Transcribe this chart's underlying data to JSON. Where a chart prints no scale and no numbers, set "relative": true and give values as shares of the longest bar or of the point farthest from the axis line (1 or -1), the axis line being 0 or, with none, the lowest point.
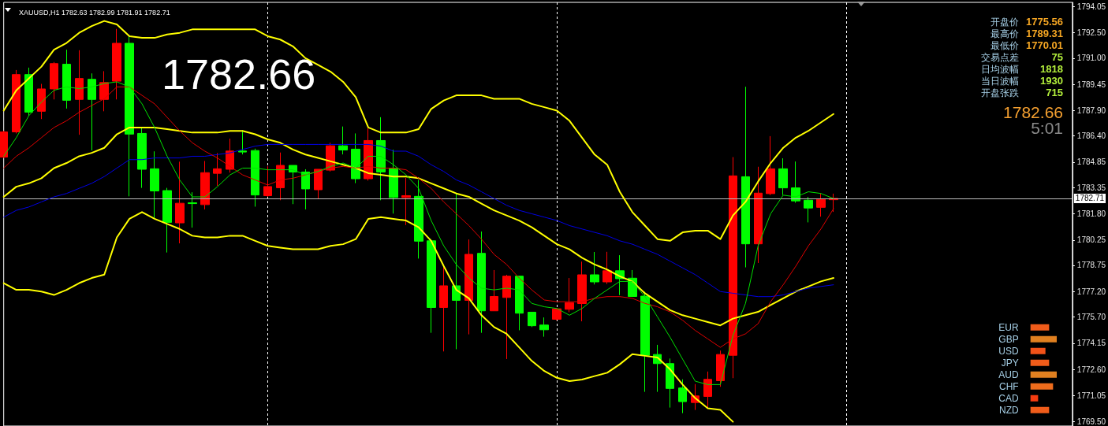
{
  "chart_data": [
    {
      "type": "candlestick",
      "title": "XAUUSD,H1 1782.63 1782.99 1781.91 1782.71",
      "categories": [
        null,
        null,
        null,
        null,
        null,
        null,
        null,
        null,
        null,
        null,
        null,
        null,
        null,
        null,
        null,
        null,
        null,
        null,
        null,
        null,
        null,
        null,
        null,
        null,
        null,
        null,
        null,
        null,
        null,
        null,
        null,
        null,
        null,
        null,
        null,
        null,
        null,
        null,
        null,
        null,
        null,
        null,
        null,
        null,
        null,
        null,
        null,
        null,
        null,
        null,
        null,
        null,
        null,
        null,
        null,
        null,
        null,
        null,
        null,
        null,
        null,
        null,
        null,
        null,
        null,
        null,
        null,
        null,
        null,
        null,
        null,
        null,
        null,
        null,
        null,
        null,
        null,
        null,
        null,
        null,
        null,
        null,
        null,
        null,
        null,
        null
      ],
      "ohlc": [
        [
          1785.15,
          1786.7,
          1785.1,
          1786.64
        ],
        [
          1786.64,
          1790.3,
          1786.55,
          1790.03
        ],
        [
          1790.03,
          1790.44,
          1787.6,
          1787.81
        ],
        [
          1787.86,
          1789.48,
          1787.4,
          1789.18
        ],
        [
          1789.18,
          1790.77,
          1788.56,
          1790.68
        ],
        [
          1790.64,
          1791.5,
          1788.02,
          1788.51
        ],
        [
          1788.56,
          1791.47,
          1786.47,
          1789.8
        ],
        [
          1789.75,
          1790.1,
          1785.54,
          1788.56
        ],
        [
          1788.56,
          1790.23,
          1787.86,
          1789.56
        ],
        [
          1789.64,
          1792.73,
          1788.56,
          1791.88
        ],
        [
          1791.88,
          1792.35,
          1782.83,
          1786.51
        ],
        [
          1786.55,
          1786.86,
          1783.33,
          1784.43
        ],
        [
          1784.46,
          1785.49,
          1781.53,
          1783.15
        ],
        [
          1783.17,
          1783.33,
          1779.51,
          1781.29
        ],
        [
          1781.26,
          1784.88,
          1780.05,
          1782.42
        ],
        [
          1782.45,
          1783.07,
          1780.98,
          1782.4
        ],
        [
          1782.34,
          1784.92,
          1782.06,
          1784.23
        ],
        [
          1784.19,
          1785.39,
          1783.45,
          1784.46
        ],
        [
          1784.43,
          1786.24,
          1784.23,
          1785.51
        ],
        [
          1785.51,
          1786.75,
          1785.31,
          1785.45
        ],
        [
          1785.54,
          1785.65,
          1782.22,
          1782.91
        ],
        [
          1782.87,
          1784.61,
          1782.8,
          1783.41
        ],
        [
          1783.34,
          1785.42,
          1782.6,
          1784.66
        ],
        [
          1784.66,
          1784.66,
          1782.37,
          1784.27
        ],
        [
          1784.27,
          1784.43,
          1782.06,
          1783.27
        ],
        [
          1783.22,
          1784.43,
          1782.68,
          1784.43
        ],
        [
          1784.38,
          1786.0,
          1784.3,
          1785.82
        ],
        [
          1785.82,
          1786.96,
          1785.31,
          1785.57
        ],
        [
          1785.62,
          1786.55,
          1783.61,
          1783.87
        ],
        [
          1783.87,
          1786.86,
          1783.76,
          1786.13
        ],
        [
          1786.13,
          1787.51,
          1782.6,
          1784.27
        ],
        [
          1784.49,
          1785.59,
          1781.81,
          1782.76
        ],
        [
          1782.76,
          1783.92,
          1781.13,
          1782.87
        ],
        [
          1782.83,
          1783.8,
          1779.15,
          1780.18
        ],
        [
          1780.2,
          1780.3,
          1774.76,
          1776.26
        ],
        [
          1776.26,
          1778.74,
          1773.66,
          1777.54
        ],
        [
          1777.54,
          1782.99,
          1773.79,
          1776.68
        ],
        [
          1776.68,
          1780.28,
          1774.67,
          1779.4
        ],
        [
          1779.46,
          1780.75,
          1774.76,
          1776.06
        ],
        [
          1776.06,
          1778.47,
          1776.06,
          1776.91
        ],
        [
          1776.85,
          1778.19,
          1773.21,
          1778.11
        ],
        [
          1778.11,
          1778.11,
          1774.91,
          1775.92
        ],
        [
          1775.98,
          1775.98,
          1775.1,
          1775.18
        ],
        [
          1775.22,
          1775.67,
          1774.53,
          1774.94
        ],
        [
          1775.56,
          1776.2,
          1775.5,
          1776.18
        ],
        [
          1776.15,
          1778.0,
          1775.98,
          1776.54
        ],
        [
          1776.49,
          1778.97,
          1775.44,
          1778.19
        ],
        [
          1778.19,
          1779.54,
          1777.62,
          1777.77
        ],
        [
          1777.77,
          1779.55,
          1777.65,
          1778.43
        ],
        [
          1778.43,
          1779.35,
          1776.99,
          1777.96
        ],
        [
          1777.99,
          1778.47,
          1776.91,
          1776.91
        ],
        [
          1776.93,
          1777.19,
          1771.27,
          1773.43
        ],
        [
          1773.48,
          1774.05,
          1771.27,
          1772.94
        ],
        [
          1772.94,
          1773.24,
          1770.34,
          1771.47
        ],
        [
          1771.5,
          1772.01,
          1770.01,
          1770.69
        ],
        [
          1770.64,
          1771.73,
          1770.2,
          1771.03
        ],
        [
          1771.0,
          1772.47,
          1770.31,
          1772.01
        ],
        [
          1771.93,
          1773.71,
          1771.57,
          1773.48
        ],
        [
          1773.43,
          1785.15,
          1772.08,
          1784.04
        ],
        [
          1783.99,
          1789.31,
          1778.63,
          1780.02
        ],
        [
          1780.02,
          1784.58,
          1778.89,
          1783.02
        ],
        [
          1782.99,
          1786.39,
          1782.9,
          1784.46
        ],
        [
          1784.46,
          1785.08,
          1782.91,
          1783.33
        ],
        [
          1783.33,
          1784.89,
          1782.45,
          1782.56
        ],
        [
          1782.6,
          1782.8,
          1781.29,
          1782.14
        ],
        [
          1782.18,
          1782.99,
          1781.63,
          1782.65
        ],
        [
          1782.63,
          1782.99,
          1781.91,
          1782.71
        ],
        null,
        null,
        null,
        null,
        null,
        null,
        null,
        null,
        null,
        null,
        null,
        null,
        null,
        null,
        null,
        null,
        null,
        null,
        null
      ],
      "colors": [
        "#ff0000",
        "#ff0000",
        "#00ff00",
        "#ff0000",
        "#ff0000",
        "#00ff00",
        "#ff0000",
        "#00ff00",
        "#ff0000",
        "#ff0000",
        "#00ff00",
        "#00ff00",
        "#00ff00",
        "#00ff00",
        "#ff0000",
        "#00ff00",
        "#ff0000",
        "#ff0000",
        "#ff0000",
        "#00ff00",
        "#00ff00",
        "#ff0000",
        "#ff0000",
        "#00ff00",
        "#00ff00",
        "#ff0000",
        "#ff0000",
        "#00ff00",
        "#00ff00",
        "#ff0000",
        "#00ff00",
        "#00ff00",
        "#ff0000",
        "#00ff00",
        "#00ff00",
        "#ff0000",
        "#00ff00",
        "#ff0000",
        "#00ff00",
        "#ff0000",
        "#ff0000",
        "#00ff00",
        "#00ff00",
        "#00ff00",
        "#ff0000",
        "#ff0000",
        "#ff0000",
        "#00ff00",
        "#ff0000",
        "#00ff00",
        "#00ff00",
        "#00ff00",
        "#00ff00",
        "#00ff00",
        "#00ff00",
        "#ff0000",
        "#ff0000",
        "#ff0000",
        "#ff0000",
        "#00ff00",
        "#ff0000",
        "#ff0000",
        "#00ff00",
        "#00ff00",
        "#00ff00",
        "#ff0000",
        "#ff0000",
        null,
        null,
        null,
        null,
        null,
        null,
        null,
        null,
        null,
        null,
        null,
        null,
        null,
        null,
        null,
        null,
        null,
        null,
        null
      ],
      "series": [
        {
          "type": "line",
          "color": "#ffff00",
          "values": [
            1787.9,
            1789.1,
            1789.8,
            1790.5,
            1791.5,
            1791.9,
            1792.5,
            1792.9,
            1793.2,
            1793.0,
            1792.3,
            1792.2,
            1792.2,
            1792.4,
            1792.5,
            1792.7,
            1792.7,
            1792.7,
            1792.7,
            1792.7,
            1792.7,
            1792.3,
            1792.1,
            1791.7,
            1791.0,
            1790.6,
            1790.2,
            1789.6,
            1788.7,
            1786.9,
            1786.6,
            1786.6,
            1786.6,
            1786.8,
            1788.0,
            1788.5,
            1788.8,
            1788.8,
            1788.8,
            1788.6,
            1788.6,
            1788.6,
            1788.3,
            1788.1,
            1787.9,
            1787.3,
            1786.3,
            1785.3,
            1784.7,
            1783.1,
            1781.9,
            1781.1,
            1780.3,
            1780.2,
            1780.7,
            1780.8,
            1780.8,
            1780.3,
            1781.7,
            1782.5,
            1783.7,
            1784.8,
            1785.7,
            1786.3,
            1786.7,
            1787.2,
            1787.7,
            null,
            null,
            null,
            null,
            null,
            null,
            null,
            null,
            null,
            null,
            null,
            null,
            null,
            null,
            null,
            null,
            null,
            null,
            null
          ]
        },
        {
          "type": "line",
          "color": "#ffff00",
          "values": [
            1782.8,
            1783.4,
            1783.6,
            1783.9,
            1784.5,
            1784.8,
            1785.2,
            1785.4,
            1785.7,
            1786.5,
            1786.9,
            1786.9,
            1786.9,
            1786.8,
            1786.7,
            1786.6,
            1786.6,
            1786.6,
            1786.7,
            1786.7,
            1786.5,
            1786.2,
            1786.0,
            1785.6,
            1785.3,
            1785.1,
            1784.9,
            1784.7,
            1784.5,
            1784.2,
            1784.1,
            1784.0,
            1784.0,
            1783.9,
            1783.6,
            1783.3,
            1783.0,
            1782.8,
            1782.4,
            1782.0,
            1781.7,
            1781.4,
            1781.0,
            1780.5,
            1780.0,
            1779.7,
            1779.2,
            1778.8,
            1778.5,
            1778.1,
            1777.8,
            1777.1,
            1776.6,
            1776.1,
            1775.8,
            1775.6,
            1775.4,
            1775.2,
            1775.6,
            1775.8,
            1776.0,
            1776.4,
            1776.8,
            1777.2,
            1777.5,
            1777.8,
            1778.0,
            null,
            null,
            null,
            null,
            null,
            null,
            null,
            null,
            null,
            null,
            null,
            null,
            null,
            null,
            null,
            null,
            null,
            null,
            null
          ]
        },
        {
          "type": "line",
          "color": "#ffff00",
          "values": [
            1777.7,
            1777.3,
            1777.3,
            1777.2,
            1777.0,
            1777.3,
            1777.7,
            1778.0,
            1778.2,
            1780.4,
            1781.5,
            1781.9,
            1781.5,
            1781.2,
            1780.9,
            1780.5,
            1780.4,
            1780.4,
            1780.5,
            1780.5,
            1780.2,
            1779.9,
            1779.8,
            1779.7,
            1779.7,
            1779.7,
            1779.9,
            1780.0,
            1780.3,
            1781.5,
            1781.6,
            1781.5,
            1781.4,
            1781.0,
            1780.2,
            1778.7,
            1777.3,
            1776.8,
            1775.8,
            1775.1,
            1774.7,
            1773.9,
            1773.1,
            1772.5,
            1772.1,
            1771.9,
            1772.0,
            1772.2,
            1772.4,
            1772.9,
            1773.5,
            1773.4,
            1773.3,
            1772.6,
            1771.7,
            1770.9,
            1770.3,
            1770.2,
            1769.5,
            null,
            null,
            null,
            null,
            null,
            null,
            null,
            null,
            null,
            null,
            null,
            null,
            null,
            null,
            null,
            null,
            null,
            null,
            null,
            null,
            null,
            null,
            null,
            null,
            null,
            null,
            null
          ]
        },
        {
          "type": "line",
          "color": "#0000e6",
          "values": [
            1781.6,
            1782.0,
            1782.2,
            1782.5,
            1782.8,
            1783.0,
            1783.3,
            1783.6,
            1784.0,
            1784.5,
            1785.0,
            1785.0,
            1785.1,
            1785.1,
            1785.1,
            1785.2,
            1785.2,
            1785.3,
            1785.4,
            1785.6,
            1785.8,
            1785.9,
            1785.9,
            1785.9,
            1785.9,
            1785.9,
            1785.9,
            1785.9,
            1785.9,
            1785.9,
            1785.8,
            1785.5,
            1785.5,
            1785.2,
            1784.7,
            1784.3,
            1783.8,
            1783.5,
            1783.1,
            1782.7,
            1782.3,
            1782.0,
            1781.8,
            1781.6,
            1781.4,
            1781.1,
            1780.9,
            1780.7,
            1780.5,
            1780.2,
            1780.0,
            1779.7,
            1779.4,
            1779.0,
            1778.6,
            1778.2,
            1777.7,
            1777.2,
            1777.1,
            1777.0,
            1776.9,
            1776.9,
            1777.0,
            1777.2,
            1777.4,
            1777.5,
            1777.6,
            null,
            null,
            null,
            null,
            null,
            null,
            null,
            null,
            null,
            null,
            null,
            null,
            null,
            null,
            null,
            null,
            null,
            null,
            null
          ]
        },
        {
          "type": "line",
          "color": "#e00000",
          "values": [
            1784.5,
            1785.2,
            1785.7,
            1786.3,
            1786.9,
            1787.3,
            1787.8,
            1788.2,
            1788.6,
            1789.3,
            1789.3,
            1788.8,
            1788.3,
            1787.5,
            1786.7,
            1786.0,
            1785.5,
            1785.1,
            1784.6,
            1784.1,
            1783.8,
            1783.5,
            1783.8,
            1783.9,
            1784.1,
            1784.3,
            1784.5,
            1784.6,
            1784.5,
            1784.6,
            1784.5,
            1784.5,
            1784.4,
            1783.9,
            1783.3,
            1782.5,
            1781.8,
            1781.1,
            1780.3,
            1779.4,
            1778.8,
            1778.0,
            1777.3,
            1776.7,
            1776.6,
            1776.6,
            1776.6,
            1776.8,
            1776.9,
            1776.9,
            1776.8,
            1776.5,
            1776.3,
            1776.0,
            1775.5,
            1774.9,
            1774.4,
            1773.9,
            1774.4,
            1774.7,
            1775.3,
            1776.6,
            1777.6,
            1778.7,
            1779.9,
            1780.9,
            1782.1,
            null,
            null,
            null,
            null,
            null,
            null,
            null,
            null,
            null,
            null,
            null,
            null,
            null,
            null,
            null,
            null,
            null,
            null,
            null
          ]
        },
        {
          "type": "line",
          "color": "#00e000",
          "values": [
            1785.2,
            1786.3,
            1787.6,
            1788.4,
            1789.1,
            1789.3,
            1789.2,
            1789.3,
            1789.5,
            1789.6,
            1789.3,
            1788.3,
            1786.9,
            1785.2,
            1783.8,
            1782.8,
            1782.8,
            1783.4,
            1784.1,
            1784.5,
            1784.5,
            1784.4,
            1784.4,
            1784.4,
            1784.1,
            1784.3,
            1784.6,
            1784.8,
            1784.5,
            1785.2,
            1785.2,
            1784.7,
            1784.1,
            1783.3,
            1781.4,
            1779.9,
            1778.8,
            1778.0,
            1777.4,
            1777.3,
            1777.4,
            1777.3,
            1776.5,
            1776.3,
            1776.2,
            1775.8,
            1776.2,
            1776.8,
            1777.3,
            1777.8,
            1777.8,
            1776.9,
            1775.7,
            1774.5,
            1773.2,
            1771.9,
            1771.7,
            1771.7,
            1774.6,
            1776.5,
            1779.9,
            1781.8,
            1782.9,
            1782.8,
            1783.1,
            1783.0,
            1782.7,
            null,
            null,
            null,
            null,
            null,
            null,
            null,
            null,
            null,
            null,
            null,
            null,
            null,
            null,
            null,
            null,
            null,
            null,
            null
          ]
        }
      ],
      "ylim": [
        1769.25,
        1794.3
      ],
      "yticks": [
        1794.05,
        {
          "value": 1792.5,
          "label": "1792.50"
        },
        {
          "value": 1791,
          "label": "1791.00"
        },
        1789.45,
        {
          "value": 1787.9,
          "label": "1787.90"
        },
        {
          "value": 1786.4,
          "label": "1786.40"
        },
        1784.85,
        1783.35,
        {
          "value": 1781.8,
          "label": "1781.80"
        },
        1780.25,
        1778.75,
        {
          "value": 1777.2,
          "label": "1777.20"
        },
        {
          "value": 1775.7,
          "label": "1775.70"
        },
        1774.15,
        {
          "value": 1772.6,
          "label": "1772.60"
        },
        1771.05,
        {
          "value": 1769.5,
          "label": "1769.50"
        }
      ],
      "ref_lines": [
        {
          "axis": "y",
          "value": 1782.71,
          "label": "1782.71",
          "color": "#c0c0c0"
        }
      ],
      "annotations": [
        "1782.66",
        "开盘价 1775.56",
        "最高价 1789.31",
        "最低价 1770.01",
        "交易点差 75",
        "日均波幅 1818",
        "当日波幅 1930",
        "开盘张跌 715",
        "1782.66",
        "5:01"
      ],
      "marker": "none",
      "tick_labels": "y",
      "grid": "x"
    },
    {
      "type": "bar",
      "orientation": "horizontal",
      "relative": true,
      "categories": [
        "EUR",
        "GBP",
        "USD",
        "JPY",
        "AUD",
        "CHF",
        "CAD",
        "NZD"
      ],
      "values": [
        0.71,
        1,
        0.57,
        0.71,
        1,
        0.86,
        0.29,
        0.71
      ],
      "colors": [
        "#f05c1a",
        "#e08020",
        "#f25218",
        "#f05c1a",
        "#e08020",
        "#ee6c1c",
        "#f53c10",
        "#f05c1a"
      ]
    }
  ]
}
